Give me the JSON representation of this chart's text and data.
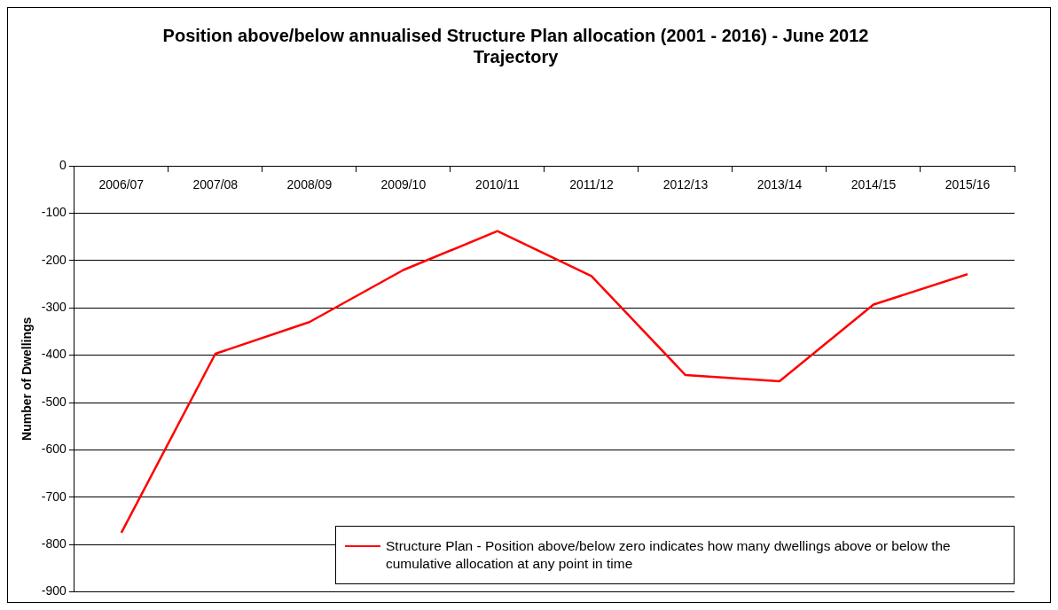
{
  "chart_data": {
    "type": "line",
    "title": "Position above/below annualised Structure Plan allocation (2001 - 2016) - June 2012",
    "subtitle": "Trajectory",
    "ylabel": "Number of Dwellings",
    "categories": [
      "2006/07",
      "2007/08",
      "2008/09",
      "2009/10",
      "2010/11",
      "2011/12",
      "2012/13",
      "2013/14",
      "2014/15",
      "2015/16"
    ],
    "series": [
      {
        "name": "Structure Plan - Position above/below zero indicates how many dwellings above or below the cumulative allocation at any point in time",
        "color": "#ff0000",
        "values": [
          -775,
          -397,
          -330,
          -220,
          -138,
          -233,
          -442,
          -455,
          -293,
          -229
        ]
      }
    ],
    "ylim": [
      -900,
      0
    ],
    "yticks": [
      0,
      -100,
      -200,
      -300,
      -400,
      -500,
      -600,
      -700,
      -800,
      -900
    ],
    "grid": "y",
    "legend": "bottom right",
    "marker": "none",
    "line_style": "solid"
  }
}
